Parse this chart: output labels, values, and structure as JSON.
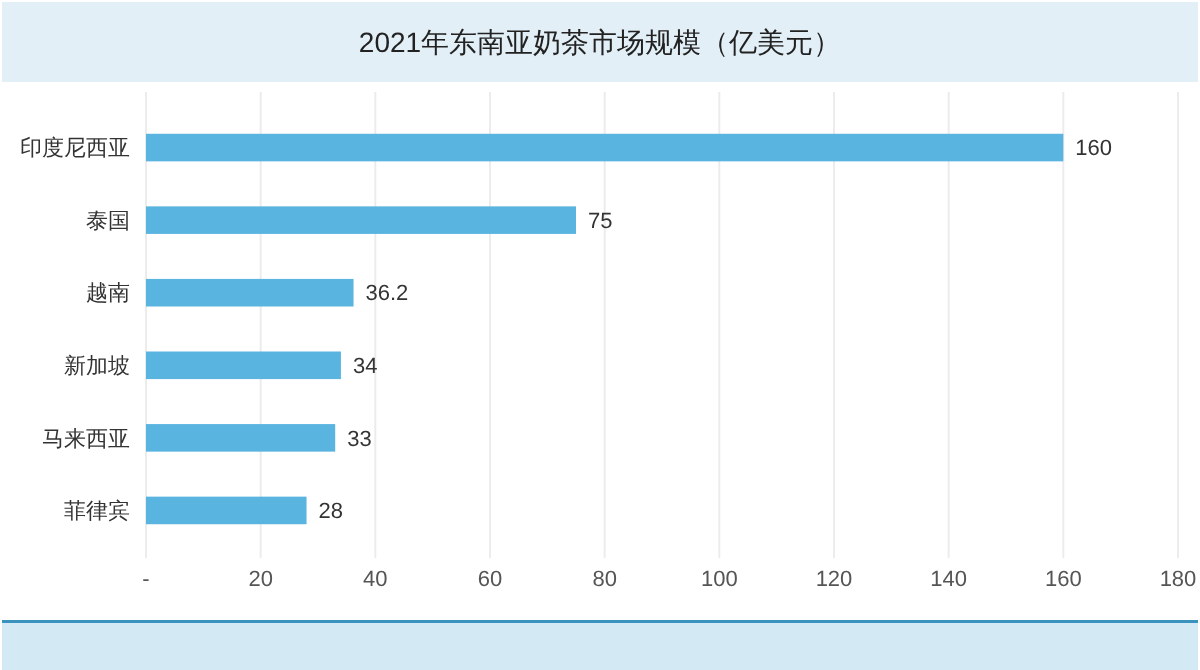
{
  "chart_data": {
    "type": "bar",
    "orientation": "horizontal",
    "title": "2021年东南亚奶茶市场规模（亿美元）",
    "categories": [
      "印度尼西亚",
      "泰国",
      "越南",
      "新加坡",
      "马来西亚",
      "菲律宾"
    ],
    "values": [
      160,
      75,
      36.2,
      34,
      33,
      28
    ],
    "color": "#5ab4e0",
    "data_labels": true,
    "xlim": [
      0,
      180
    ],
    "xticks": [
      {
        "value": 0,
        "label": "-"
      },
      20,
      40,
      60,
      80,
      100,
      120,
      140,
      160,
      180
    ],
    "grid": "x"
  }
}
